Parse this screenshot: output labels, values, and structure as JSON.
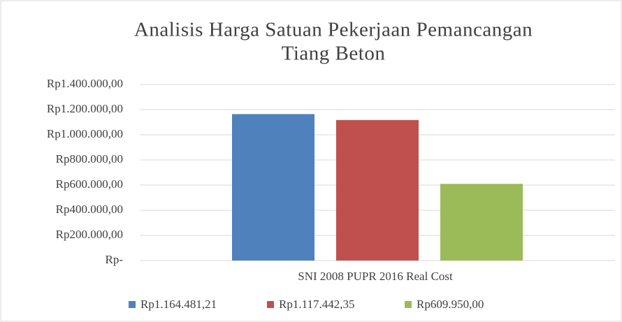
{
  "chart_data": {
    "type": "bar",
    "title": [
      "Analisis Harga Satuan Pekerjaan Pemancangan",
      "Tiang Beton"
    ],
    "categories": [
      "SNI 2008 PUPR 2016 Real Cost"
    ],
    "series": [
      {
        "name": "Rp1.164.481,21",
        "color": "#4f81bd",
        "values": [
          1164481.21
        ]
      },
      {
        "name": "Rp1.117.442,35",
        "color": "#c0504d",
        "values": [
          1117442.35
        ]
      },
      {
        "name": "Rp609.950,00",
        "color": "#9bbb59",
        "values": [
          609950
        ]
      }
    ],
    "ylim": [
      0,
      1400000
    ],
    "yticks": [
      {
        "value": 0,
        "label": "Rp-"
      },
      {
        "value": 200000,
        "label": "Rp200.000,00"
      },
      {
        "value": 400000,
        "label": "Rp400.000,00"
      },
      {
        "value": 600000,
        "label": "Rp600.000,00"
      },
      {
        "value": 800000,
        "label": "Rp800.000,00"
      },
      {
        "value": 1000000,
        "label": "Rp1.000.000,00"
      },
      {
        "value": 1200000,
        "label": "Rp1.200.000,00"
      },
      {
        "value": 1400000,
        "label": "Rp1.400.000,00"
      }
    ],
    "grid": true,
    "legend": "bottom"
  }
}
